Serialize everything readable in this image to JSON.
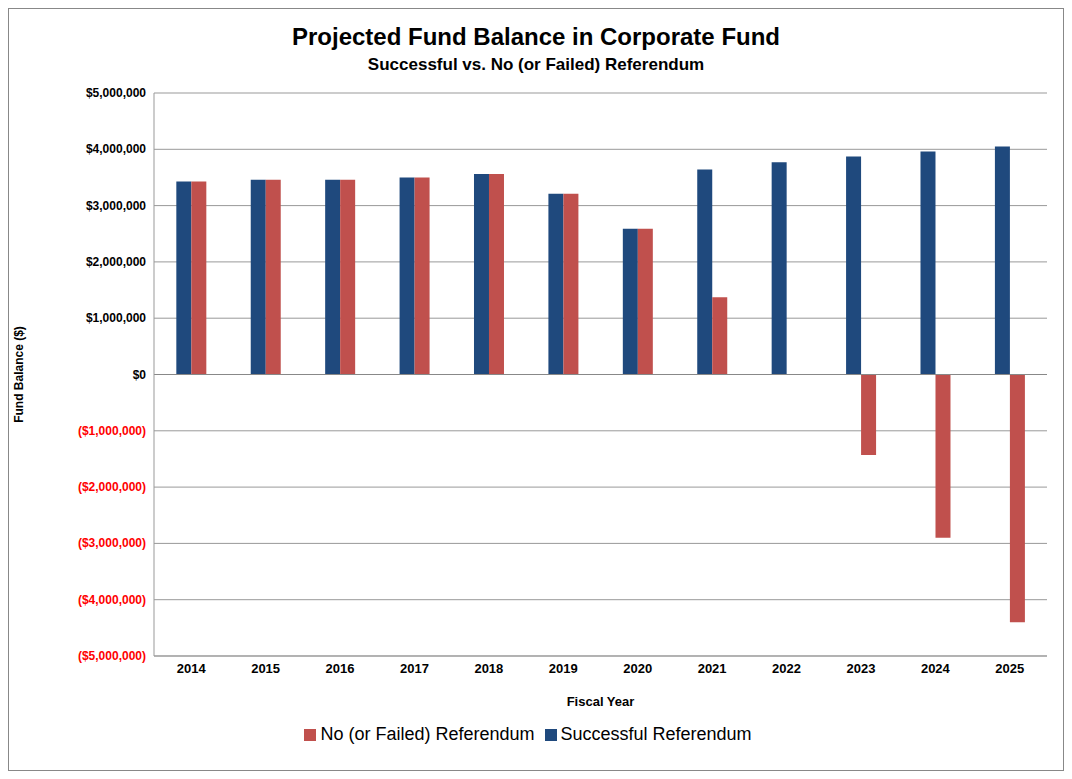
{
  "chart_data": {
    "type": "bar",
    "title": "Projected Fund Balance in Corporate Fund",
    "subtitle": "Successful vs. No (or Failed) Referendum",
    "x_label": "Fiscal Year",
    "y_label": "Fund Balance ($)",
    "categories": [
      "2014",
      "2015",
      "2016",
      "2017",
      "2018",
      "2019",
      "2020",
      "2021",
      "2022",
      "2023",
      "2024",
      "2025"
    ],
    "series": [
      {
        "name": "Successful Referendum",
        "color": "#1f497d",
        "values": [
          3430000,
          3460000,
          3460000,
          3500000,
          3560000,
          3210000,
          2590000,
          3640000,
          3770000,
          3870000,
          3960000,
          4050000
        ]
      },
      {
        "name": "No (or Failed) Referendum",
        "color": "#c0504d",
        "values": [
          3430000,
          3460000,
          3460000,
          3500000,
          3560000,
          3210000,
          2590000,
          1370000,
          0,
          -1430000,
          -2900000,
          -4400000
        ]
      }
    ],
    "ylim": [
      -5000000,
      5000000
    ],
    "yticks": [
      {
        "value": -5000000,
        "label": "($5,000,000)"
      },
      {
        "value": -4000000,
        "label": "($4,000,000)"
      },
      {
        "value": -3000000,
        "label": "($3,000,000)"
      },
      {
        "value": -2000000,
        "label": "($2,000,000)"
      },
      {
        "value": -1000000,
        "label": "($1,000,000)"
      },
      {
        "value": 0,
        "label": "$0"
      },
      {
        "value": 1000000,
        "label": "$1,000,000"
      },
      {
        "value": 2000000,
        "label": "$2,000,000"
      },
      {
        "value": 3000000,
        "label": "$3,000,000"
      },
      {
        "value": 4000000,
        "label": "$4,000,000"
      },
      {
        "value": 5000000,
        "label": "$5,000,000"
      }
    ],
    "grid": true,
    "legend": "bottom"
  }
}
